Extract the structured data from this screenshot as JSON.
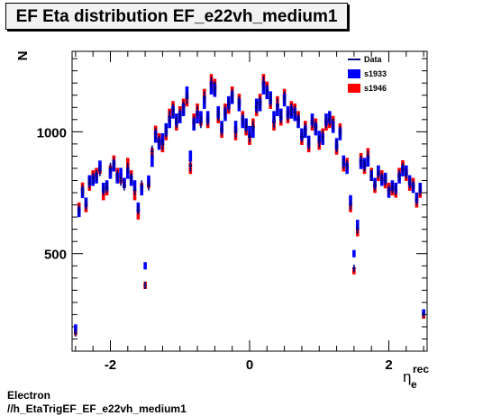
{
  "chart_data": {
    "type": "scatter",
    "title": "EF Eta distribution EF_e22vh_medium1",
    "ylabel": "N",
    "xlabel_main": "η",
    "xlabel_sup": "rec",
    "xlabel_sub": "e",
    "xlim": [
      -2.55,
      2.55
    ],
    "ylim": [
      100,
      1330
    ],
    "xticks": [
      -2,
      0,
      2
    ],
    "xtick_labels": [
      "-2",
      "0",
      "2"
    ],
    "yticks": [
      500,
      1000
    ],
    "ytick_labels": [
      "500",
      "1000"
    ],
    "legend": {
      "position": "top-right",
      "entries": [
        {
          "name": "Data",
          "color": "#000080",
          "marker": "line"
        },
        {
          "name": "s1933",
          "color": "#0000ff",
          "marker": "box"
        },
        {
          "name": "s1946",
          "color": "#ff0000",
          "marker": "box"
        }
      ]
    },
    "series": [
      {
        "name": "Data",
        "color": "#000080",
        "x": [
          -2.5,
          -2.45,
          -2.4,
          -2.35,
          -2.3,
          -2.25,
          -2.2,
          -2.15,
          -2.1,
          -2.05,
          -2.0,
          -1.95,
          -1.9,
          -1.85,
          -1.8,
          -1.75,
          -1.7,
          -1.65,
          -1.6,
          -1.55,
          -1.5,
          -1.45,
          -1.4,
          -1.35,
          -1.3,
          -1.25,
          -1.2,
          -1.15,
          -1.1,
          -1.05,
          -1.0,
          -0.95,
          -0.9,
          -0.85,
          -0.8,
          -0.75,
          -0.7,
          -0.65,
          -0.6,
          -0.55,
          -0.5,
          -0.45,
          -0.4,
          -0.35,
          -0.3,
          -0.25,
          -0.2,
          -0.15,
          -0.1,
          -0.05,
          0.0,
          0.05,
          0.1,
          0.15,
          0.2,
          0.25,
          0.3,
          0.35,
          0.4,
          0.45,
          0.5,
          0.55,
          0.6,
          0.65,
          0.7,
          0.75,
          0.8,
          0.85,
          0.9,
          0.95,
          1.0,
          1.05,
          1.1,
          1.15,
          1.2,
          1.25,
          1.3,
          1.35,
          1.4,
          1.45,
          1.5,
          1.55,
          1.6,
          1.65,
          1.7,
          1.75,
          1.8,
          1.85,
          1.9,
          1.95,
          2.0,
          2.05,
          2.1,
          2.15,
          2.2,
          2.25,
          2.3,
          2.35,
          2.4,
          2.45,
          2.5
        ],
        "y": [
          175,
          680,
          760,
          700,
          790,
          810,
          820,
          840,
          760,
          770,
          850,
          870,
          820,
          800,
          780,
          850,
          810,
          760,
          680,
          780,
          370,
          780,
          920,
          990,
          960,
          950,
          1000,
          1060,
          1090,
          1040,
          1070,
          1100,
          1140,
          860,
          1040,
          1080,
          1040,
          1140,
          1050,
          1200,
          1180,
          1070,
          1010,
          1080,
          1110,
          1150,
          1000,
          1120,
          1050,
          1020,
          980,
          1020,
          1100,
          1120,
          1200,
          1170,
          1130,
          1040,
          1110,
          1060,
          1140,
          1070,
          1090,
          1080,
          1050,
          980,
          1010,
          950,
          1040,
          1020,
          960,
          980,
          1040,
          1050,
          1030,
          940,
          1000,
          870,
          860,
          700,
          440,
          600,
          880,
          860,
          900,
          820,
          780,
          830,
          810,
          800,
          760,
          770,
          760,
          820,
          850,
          830,
          790,
          780,
          720,
          760,
          250
        ],
        "err": [
          15,
          20,
          22,
          20,
          22,
          22,
          22,
          22,
          21,
          21,
          23,
          23,
          22,
          22,
          21,
          23,
          22,
          21,
          20,
          21,
          15,
          21,
          24,
          25,
          24,
          24,
          25,
          25,
          26,
          25,
          25,
          26,
          26,
          23,
          25,
          26,
          25,
          26,
          25,
          27,
          27,
          25,
          25,
          26,
          26,
          26,
          25,
          26,
          25,
          25,
          24,
          25,
          26,
          26,
          27,
          26,
          26,
          25,
          26,
          25,
          26,
          25,
          26,
          26,
          25,
          24,
          25,
          24,
          25,
          25,
          24,
          24,
          25,
          25,
          25,
          24,
          25,
          23,
          23,
          20,
          15,
          19,
          23,
          23,
          23,
          22,
          21,
          22,
          22,
          22,
          21,
          21,
          21,
          22,
          23,
          22,
          22,
          21,
          21,
          21,
          12
        ]
      },
      {
        "name": "s1933",
        "color": "#0000ff",
        "x": [
          -2.5,
          -2.45,
          -2.4,
          -2.35,
          -2.3,
          -2.25,
          -2.2,
          -2.15,
          -2.1,
          -2.05,
          -2.0,
          -1.95,
          -1.9,
          -1.85,
          -1.8,
          -1.75,
          -1.7,
          -1.65,
          -1.6,
          -1.55,
          -1.5,
          -1.45,
          -1.4,
          -1.35,
          -1.3,
          -1.25,
          -1.2,
          -1.15,
          -1.1,
          -1.05,
          -1.0,
          -0.95,
          -0.9,
          -0.85,
          -0.8,
          -0.75,
          -0.7,
          -0.65,
          -0.6,
          -0.55,
          -0.5,
          -0.45,
          -0.4,
          -0.35,
          -0.3,
          -0.25,
          -0.2,
          -0.15,
          -0.1,
          -0.05,
          0.0,
          0.05,
          0.1,
          0.15,
          0.2,
          0.25,
          0.3,
          0.35,
          0.4,
          0.45,
          0.5,
          0.55,
          0.6,
          0.65,
          0.7,
          0.75,
          0.8,
          0.85,
          0.9,
          0.95,
          1.0,
          1.05,
          1.1,
          1.15,
          1.2,
          1.25,
          1.3,
          1.35,
          1.4,
          1.45,
          1.5,
          1.55,
          1.6,
          1.65,
          1.7,
          1.75,
          1.8,
          1.85,
          1.9,
          1.95,
          2.0,
          2.05,
          2.1,
          2.15,
          2.2,
          2.25,
          2.3,
          2.35,
          2.4,
          2.45,
          2.5
        ],
        "y": [
          195,
          670,
          750,
          710,
          800,
          800,
          810,
          860,
          770,
          780,
          830,
          860,
          810,
          830,
          790,
          830,
          800,
          780,
          690,
          760,
          450,
          800,
          880,
          980,
          950,
          970,
          1010,
          1040,
          1080,
          1050,
          1060,
          1090,
          1160,
          900,
          1030,
          1060,
          1060,
          1120,
          1060,
          1180,
          1170,
          1080,
          1020,
          1070,
          1120,
          1140,
          1020,
          1110,
          1040,
          1030,
          1000,
          1000,
          1110,
          1110,
          1180,
          1160,
          1140,
          1060,
          1090,
          1070,
          1130,
          1080,
          1080,
          1070,
          1040,
          990,
          1000,
          960,
          1050,
          1010,
          980,
          970,
          1050,
          1060,
          1020,
          950,
          990,
          880,
          850,
          720,
          500,
          620,
          870,
          870,
          880,
          820,
          790,
          840,
          800,
          810,
          750,
          780,
          770,
          810,
          840,
          840,
          800,
          770,
          730,
          770,
          260
        ],
        "err": [
          15,
          20,
          22,
          20,
          22,
          22,
          22,
          22,
          21,
          21,
          23,
          23,
          22,
          22,
          21,
          23,
          22,
          21,
          20,
          21,
          15,
          21,
          24,
          25,
          24,
          24,
          25,
          25,
          26,
          25,
          25,
          26,
          26,
          23,
          25,
          26,
          25,
          26,
          25,
          27,
          27,
          25,
          25,
          26,
          26,
          26,
          25,
          26,
          25,
          25,
          24,
          25,
          26,
          26,
          27,
          26,
          26,
          25,
          26,
          25,
          26,
          25,
          26,
          26,
          25,
          24,
          25,
          24,
          25,
          25,
          24,
          24,
          25,
          25,
          25,
          24,
          25,
          23,
          23,
          20,
          15,
          19,
          23,
          23,
          23,
          22,
          21,
          22,
          22,
          22,
          21,
          21,
          21,
          22,
          23,
          22,
          22,
          21,
          21,
          21,
          12
        ]
      },
      {
        "name": "s1946",
        "color": "#ff0000",
        "x": [
          -2.5,
          -2.45,
          -2.4,
          -2.35,
          -2.3,
          -2.25,
          -2.2,
          -2.15,
          -2.1,
          -2.05,
          -2.0,
          -1.95,
          -1.9,
          -1.85,
          -1.8,
          -1.75,
          -1.7,
          -1.65,
          -1.6,
          -1.55,
          -1.5,
          -1.45,
          -1.4,
          -1.35,
          -1.3,
          -1.25,
          -1.2,
          -1.15,
          -1.1,
          -1.05,
          -1.0,
          -0.95,
          -0.9,
          -0.85,
          -0.8,
          -0.75,
          -0.7,
          -0.65,
          -0.6,
          -0.55,
          -0.5,
          -0.45,
          -0.4,
          -0.35,
          -0.3,
          -0.25,
          -0.2,
          -0.15,
          -0.1,
          -0.05,
          0.0,
          0.05,
          0.1,
          0.15,
          0.2,
          0.25,
          0.3,
          0.35,
          0.4,
          0.45,
          0.5,
          0.55,
          0.6,
          0.65,
          0.7,
          0.75,
          0.8,
          0.85,
          0.9,
          0.95,
          1.0,
          1.05,
          1.1,
          1.15,
          1.2,
          1.25,
          1.3,
          1.35,
          1.4,
          1.45,
          1.5,
          1.55,
          1.6,
          1.65,
          1.7,
          1.75,
          1.8,
          1.85,
          1.9,
          1.95,
          2.0,
          2.05,
          2.1,
          2.15,
          2.2,
          2.25,
          2.3,
          2.35,
          2.4,
          2.45,
          2.5
        ],
        "y": [
          180,
          690,
          770,
          690,
          780,
          820,
          830,
          850,
          740,
          760,
          840,
          880,
          830,
          810,
          790,
          870,
          820,
          740,
          660,
          770,
          370,
          790,
          910,
          1000,
          970,
          940,
          990,
          1070,
          1100,
          1030,
          1080,
          1110,
          1130,
          850,
          1050,
          1090,
          1050,
          1150,
          1040,
          1210,
          1190,
          1060,
          1000,
          1090,
          1100,
          1160,
          990,
          1130,
          1060,
          1010,
          970,
          1030,
          1090,
          1130,
          1210,
          1180,
          1120,
          1030,
          1120,
          1050,
          1150,
          1060,
          1100,
          1090,
          1060,
          970,
          1020,
          940,
          1030,
          1030,
          950,
          990,
          1030,
          1040,
          1040,
          930,
          1010,
          860,
          870,
          690,
          430,
          590,
          890,
          850,
          910,
          830,
          770,
          820,
          820,
          790,
          770,
          760,
          750,
          830,
          860,
          820,
          780,
          790,
          710,
          750,
          245
        ],
        "err": [
          15,
          20,
          22,
          20,
          22,
          22,
          22,
          22,
          21,
          21,
          23,
          23,
          22,
          22,
          21,
          23,
          22,
          21,
          20,
          21,
          15,
          21,
          24,
          25,
          24,
          24,
          25,
          25,
          26,
          25,
          25,
          26,
          26,
          23,
          25,
          26,
          25,
          26,
          25,
          27,
          27,
          25,
          25,
          26,
          26,
          26,
          25,
          26,
          25,
          25,
          24,
          25,
          26,
          26,
          27,
          26,
          26,
          25,
          26,
          25,
          26,
          25,
          26,
          26,
          25,
          24,
          25,
          24,
          25,
          25,
          24,
          24,
          25,
          25,
          25,
          24,
          25,
          23,
          23,
          20,
          15,
          19,
          23,
          23,
          23,
          22,
          21,
          22,
          22,
          22,
          21,
          21,
          21,
          22,
          23,
          22,
          22,
          21,
          21,
          21,
          12
        ]
      }
    ]
  },
  "footer": {
    "line1": "Electron",
    "line2": "//h_EtaTrigEF_EF_e22vh_medium1"
  }
}
